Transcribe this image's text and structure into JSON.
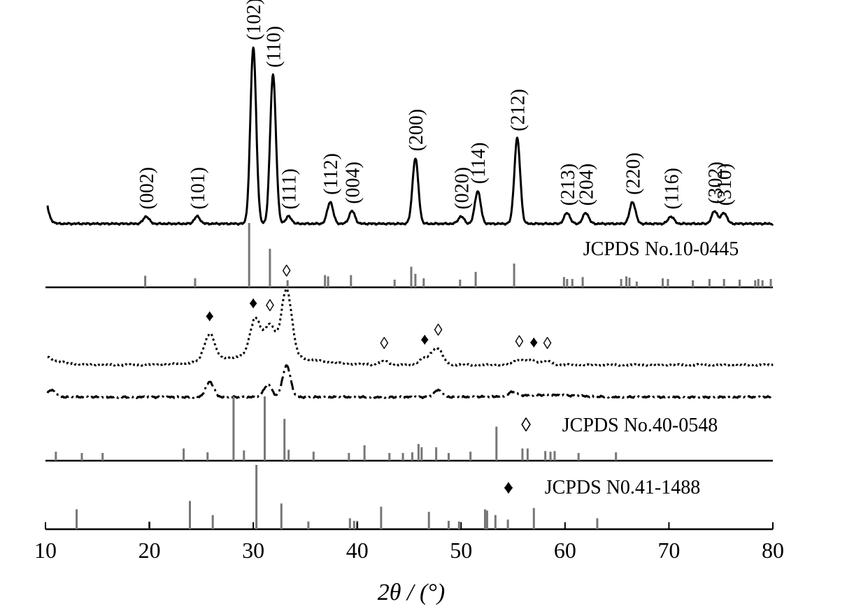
{
  "chart_data": {
    "type": "line",
    "xlabel": "2θ / (°)",
    "ylabel": "",
    "xlim": [
      10,
      80
    ],
    "xticks": [
      10,
      20,
      30,
      40,
      50,
      60,
      70,
      80
    ],
    "grid": false,
    "legend": "none",
    "colors": {
      "pattern": "#000000",
      "reference": "#777777",
      "axis": "#000000"
    },
    "series": [
      {
        "style": "solid",
        "peaks": [
          {
            "label": "(002)",
            "x": 19.7,
            "height": 4
          },
          {
            "label": "(101)",
            "x": 24.6,
            "height": 4
          },
          {
            "label": "(102)",
            "x": 30.0,
            "height": 97
          },
          {
            "label": "(110)",
            "x": 31.9,
            "height": 82
          },
          {
            "label": "(111)",
            "x": 33.4,
            "height": 4
          },
          {
            "label": "(112)",
            "x": 37.4,
            "height": 12
          },
          {
            "label": "(004)",
            "x": 39.5,
            "height": 7
          },
          {
            "label": "(200)",
            "x": 45.6,
            "height": 36
          },
          {
            "label": "(020)",
            "x": 50.0,
            "height": 4
          },
          {
            "label": "(114)",
            "x": 51.6,
            "height": 18
          },
          {
            "label": "(212)",
            "x": 55.4,
            "height": 47
          },
          {
            "label": "(213)",
            "x": 60.2,
            "height": 6
          },
          {
            "label": "(204)",
            "x": 62.0,
            "height": 6
          },
          {
            "label": "(220)",
            "x": 66.5,
            "height": 12
          },
          {
            "label": "(116)",
            "x": 70.2,
            "height": 4
          },
          {
            "label": "(302)",
            "x": 74.4,
            "height": 7
          },
          {
            "label": "(310)",
            "x": 75.3,
            "height": 6
          }
        ]
      },
      {
        "style": "dotted",
        "peaks": [
          {
            "x": 25.8,
            "height": 16
          },
          {
            "x": 30.2,
            "height": 22
          },
          {
            "x": 31.6,
            "height": 18
          },
          {
            "x": 33.2,
            "height": 40
          },
          {
            "x": 42.6,
            "height": 2
          },
          {
            "x": 46.5,
            "height": 4
          },
          {
            "x": 47.7,
            "height": 10
          },
          {
            "x": 55.5,
            "height": 3
          },
          {
            "x": 56.8,
            "height": 3
          },
          {
            "x": 58.3,
            "height": 2
          }
        ]
      },
      {
        "style": "dash-dot",
        "peaks": [
          {
            "x": 10.6,
            "height": 10
          },
          {
            "x": 25.8,
            "height": 22
          },
          {
            "x": 31.4,
            "height": 18
          },
          {
            "x": 33.2,
            "height": 45
          },
          {
            "x": 47.8,
            "height": 10
          },
          {
            "x": 55.0,
            "height": 6
          }
        ]
      }
    ],
    "references": [
      {
        "label": "JCPDS No.10-0445",
        "marker": "",
        "sticks": [
          {
            "x": 19.6,
            "i": 18
          },
          {
            "x": 24.4,
            "i": 14
          },
          {
            "x": 29.6,
            "i": 100
          },
          {
            "x": 31.6,
            "i": 60
          },
          {
            "x": 33.3,
            "i": 11
          },
          {
            "x": 36.9,
            "i": 19
          },
          {
            "x": 37.2,
            "i": 17
          },
          {
            "x": 39.4,
            "i": 19
          },
          {
            "x": 43.6,
            "i": 12
          },
          {
            "x": 45.2,
            "i": 32
          },
          {
            "x": 45.6,
            "i": 21
          },
          {
            "x": 46.4,
            "i": 14
          },
          {
            "x": 49.9,
            "i": 12
          },
          {
            "x": 51.4,
            "i": 24
          },
          {
            "x": 55.1,
            "i": 37
          },
          {
            "x": 59.9,
            "i": 16
          },
          {
            "x": 60.2,
            "i": 13
          },
          {
            "x": 60.7,
            "i": 13
          },
          {
            "x": 61.7,
            "i": 16
          },
          {
            "x": 65.4,
            "i": 13
          },
          {
            "x": 65.9,
            "i": 17
          },
          {
            "x": 66.2,
            "i": 15
          },
          {
            "x": 66.9,
            "i": 9
          },
          {
            "x": 69.4,
            "i": 14
          },
          {
            "x": 69.9,
            "i": 13
          },
          {
            "x": 72.3,
            "i": 11
          },
          {
            "x": 73.9,
            "i": 13
          },
          {
            "x": 75.3,
            "i": 13
          },
          {
            "x": 76.8,
            "i": 12
          },
          {
            "x": 78.3,
            "i": 11
          },
          {
            "x": 78.6,
            "i": 13
          },
          {
            "x": 79.0,
            "i": 11
          },
          {
            "x": 79.8,
            "i": 13
          }
        ]
      },
      {
        "label": "JCPDS No.40-0548",
        "marker": "◊",
        "sticks": [
          {
            "x": 11.0,
            "i": 14
          },
          {
            "x": 13.5,
            "i": 12
          },
          {
            "x": 15.5,
            "i": 12
          },
          {
            "x": 23.3,
            "i": 19
          },
          {
            "x": 25.6,
            "i": 13
          },
          {
            "x": 28.1,
            "i": 100
          },
          {
            "x": 29.1,
            "i": 16
          },
          {
            "x": 31.1,
            "i": 100
          },
          {
            "x": 33.0,
            "i": 65
          },
          {
            "x": 33.4,
            "i": 17
          },
          {
            "x": 35.8,
            "i": 14
          },
          {
            "x": 39.2,
            "i": 12
          },
          {
            "x": 40.7,
            "i": 24
          },
          {
            "x": 43.1,
            "i": 12
          },
          {
            "x": 44.4,
            "i": 12
          },
          {
            "x": 45.3,
            "i": 13
          },
          {
            "x": 45.9,
            "i": 26
          },
          {
            "x": 46.2,
            "i": 21
          },
          {
            "x": 47.6,
            "i": 21
          },
          {
            "x": 48.8,
            "i": 12
          },
          {
            "x": 50.9,
            "i": 14
          },
          {
            "x": 53.4,
            "i": 53
          },
          {
            "x": 55.9,
            "i": 19
          },
          {
            "x": 56.4,
            "i": 19
          },
          {
            "x": 58.1,
            "i": 15
          },
          {
            "x": 58.6,
            "i": 14
          },
          {
            "x": 59.0,
            "i": 15
          },
          {
            "x": 61.3,
            "i": 12
          },
          {
            "x": 64.9,
            "i": 13
          }
        ]
      },
      {
        "label": "JCPDS N0.41-1488",
        "marker": "♦",
        "sticks": [
          {
            "x": 13.0,
            "i": 31
          },
          {
            "x": 20.0,
            "i": 12
          },
          {
            "x": 23.9,
            "i": 44
          },
          {
            "x": 26.1,
            "i": 22
          },
          {
            "x": 30.3,
            "i": 100
          },
          {
            "x": 32.7,
            "i": 40
          },
          {
            "x": 35.3,
            "i": 12
          },
          {
            "x": 39.3,
            "i": 17
          },
          {
            "x": 39.7,
            "i": 13
          },
          {
            "x": 40.0,
            "i": 13
          },
          {
            "x": 42.3,
            "i": 35
          },
          {
            "x": 46.9,
            "i": 27
          },
          {
            "x": 48.8,
            "i": 13
          },
          {
            "x": 49.8,
            "i": 12
          },
          {
            "x": 52.3,
            "i": 31
          },
          {
            "x": 52.5,
            "i": 29
          },
          {
            "x": 53.3,
            "i": 22
          },
          {
            "x": 54.5,
            "i": 15
          },
          {
            "x": 57.0,
            "i": 33
          },
          {
            "x": 63.1,
            "i": 17
          }
        ]
      }
    ],
    "markers": [
      {
        "symbol": "♦",
        "x": 25.8,
        "series": 1
      },
      {
        "symbol": "♦",
        "x": 30.0,
        "series": 1
      },
      {
        "symbol": "◊",
        "x": 31.6,
        "series": 1
      },
      {
        "symbol": "◊",
        "x": 33.2,
        "series": 1
      },
      {
        "symbol": "◊",
        "x": 42.6,
        "series": 1
      },
      {
        "symbol": "♦",
        "x": 46.5,
        "series": 1
      },
      {
        "symbol": "◊",
        "x": 47.8,
        "series": 1
      },
      {
        "symbol": "◊",
        "x": 55.6,
        "series": 1
      },
      {
        "symbol": "♦",
        "x": 57.0,
        "series": 1
      },
      {
        "symbol": "◊",
        "x": 58.3,
        "series": 1
      }
    ]
  }
}
